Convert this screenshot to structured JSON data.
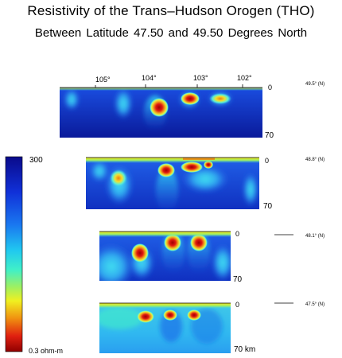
{
  "title": "Resistivity of the  Trans–Hudson Orogen (THO)",
  "subtitle": "Between Latitude  47.50  and  49.50  Degrees North",
  "scale": {
    "max_label": "300",
    "min_label": "0.3 ohm-m",
    "colors": [
      "#0a0a8a",
      "#1030d8",
      "#1a78f0",
      "#20c8f0",
      "#40f0c8",
      "#a0f060",
      "#f0f020",
      "#f09010",
      "#e02010",
      "#900000"
    ]
  },
  "longitudes": [
    "105°",
    "104°",
    "103°",
    "102°"
  ],
  "panels": [
    {
      "lat": "49.5° (N)",
      "top": "0",
      "bottom": "70"
    },
    {
      "lat": "48.8° (N)",
      "top": "0",
      "bottom": "70"
    },
    {
      "lat": "48.1° (N)",
      "top": "0",
      "bottom": "70"
    },
    {
      "lat": "47.5° (N)",
      "top": "0",
      "bottom": "70 km"
    }
  ]
}
